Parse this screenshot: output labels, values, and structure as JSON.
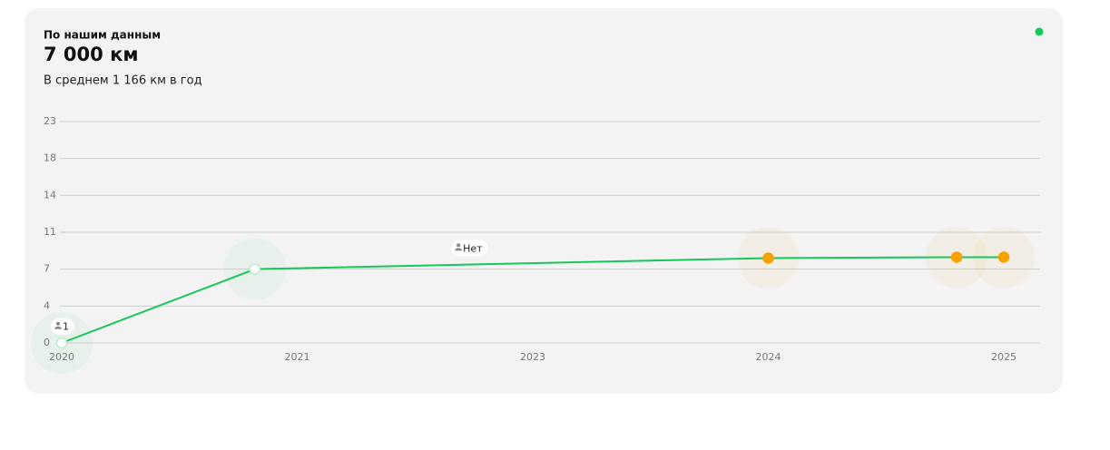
{
  "header": {
    "label": "По нашим данным",
    "value": "7 000 км",
    "note": "В среднем 1 166 км в год"
  },
  "chart_data": {
    "type": "line",
    "x": [
      2020,
      2020.82,
      2024,
      2024.8,
      2025
    ],
    "series": [
      {
        "color": "#16c75a",
        "values": [
          0,
          7,
          8.2,
          8.3,
          8.3
        ],
        "point_colors": [
          "#ffffff",
          "#ffffff",
          "#f5a100",
          "#f5a100",
          "#f5a100"
        ]
      }
    ],
    "xlim": [
      2020,
      2025
    ],
    "xticks": [
      2020,
      2021,
      2023,
      2024,
      2025
    ],
    "ylim": [
      0,
      23
    ],
    "yticks": [
      0,
      4,
      7,
      11,
      14,
      18,
      23
    ],
    "grid": true,
    "annotations": [
      {
        "text": "1",
        "x": 2020,
        "y": 1.8
      },
      {
        "text": "Нет",
        "x": 2022.4,
        "y": 9.3
      }
    ]
  }
}
